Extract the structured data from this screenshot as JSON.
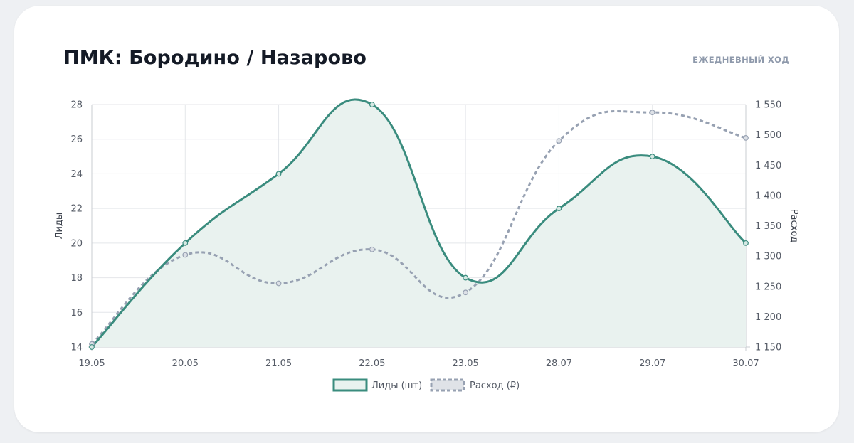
{
  "header": {
    "title": "ПМК: Бородино / Назарово",
    "subtitle": "ЕЖЕДНЕВНЫЙ ХОД"
  },
  "colors": {
    "leads_line": "#3a8c7e",
    "leads_fill": "#e9f2ef",
    "spend_line": "#97a1b2",
    "grid": "#e4e6ea",
    "axis_text": "#555b66"
  },
  "chart_data": {
    "type": "line",
    "categories": [
      "19.05",
      "20.05",
      "21.05",
      "22.05",
      "23.05",
      "28.07",
      "29.07",
      "30.07"
    ],
    "series": [
      {
        "name": "Лиды (шт)",
        "axis": "left",
        "fill": true,
        "dashed": false,
        "values": [
          14,
          20,
          24,
          28,
          18,
          22,
          25,
          20
        ]
      },
      {
        "name": "Расход (₽)",
        "axis": "right",
        "fill": false,
        "dashed": true,
        "values": [
          1155,
          1302,
          1255,
          1311,
          1240,
          1490,
          1537,
          1495
        ]
      }
    ],
    "ylabel_left": "Лиды",
    "ylabel_right": "Расход",
    "ylim_left": [
      14,
      28
    ],
    "yticks_left": [
      "14",
      "16",
      "18",
      "20",
      "22",
      "24",
      "26",
      "28"
    ],
    "ylim_right": [
      1150,
      1550
    ],
    "yticks_right": [
      "1 150",
      "1 200",
      "1 250",
      "1 300",
      "1 350",
      "1 400",
      "1 450",
      "1 500",
      "1 550"
    ],
    "grid": true,
    "legend_position": "bottom"
  }
}
